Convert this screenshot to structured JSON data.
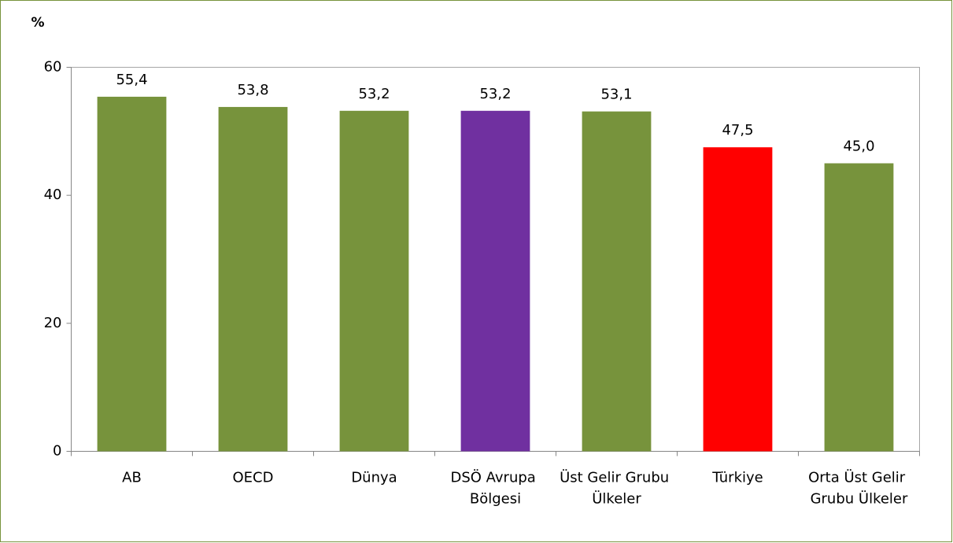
{
  "chart_data": {
    "type": "bar",
    "y_label": "%",
    "categories": [
      "AB",
      "OECD",
      "Dünya",
      "DSÖ Avrupa Bölgesi",
      "Üst Gelir Grubu Ülkeler",
      "Türkiye",
      "Orta Üst Gelir Grubu Ülkeler"
    ],
    "values": [
      55.4,
      53.8,
      53.2,
      53.2,
      53.1,
      47.5,
      45.0
    ],
    "value_labels": [
      "55,4",
      "53,8",
      "53,2",
      "53,2",
      "53,1",
      "47,5",
      "45,0"
    ],
    "colors": [
      "#77933c",
      "#77933c",
      "#77933c",
      "#7030a0",
      "#77933c",
      "#ff0000",
      "#77933c"
    ],
    "ylim": [
      0,
      60
    ],
    "yticks": [
      0,
      20,
      40,
      60
    ],
    "grid": false
  }
}
